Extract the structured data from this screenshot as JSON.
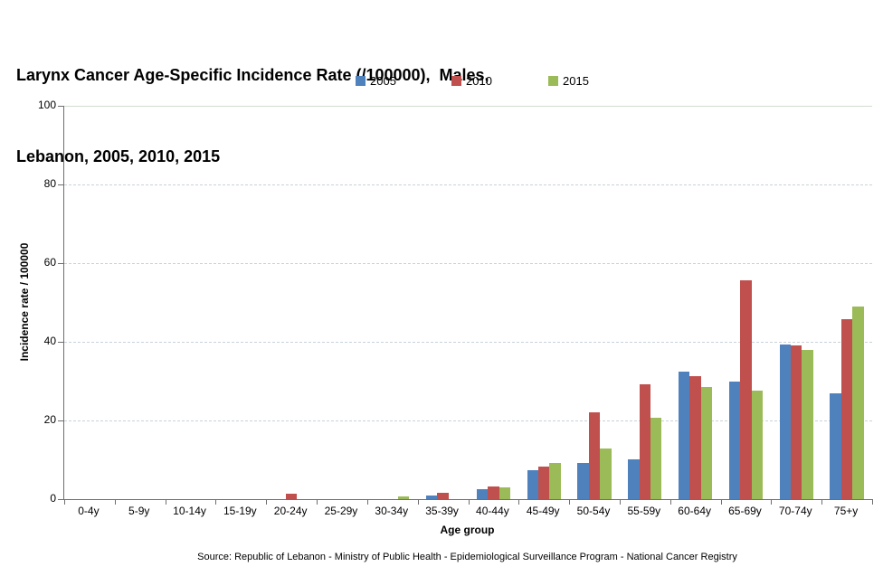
{
  "header": {
    "title_line1": "Larynx Cancer Age-Specific Incidence Rate (/100000),  Males,",
    "title_line2": "Lebanon, 2005, 2010, 2015"
  },
  "source": "Source: Republic of Lebanon - Ministry of Public Health - Epidemiological Surveillance Program - National Cancer Registry",
  "chart_data": {
    "type": "bar",
    "title": "Larynx Cancer Age-Specific Incidence Rate (/100000), Males, Lebanon, 2005, 2010, 2015",
    "categories": [
      "0-4y",
      "5-9y",
      "10-14y",
      "15-19y",
      "20-24y",
      "25-29y",
      "30-34y",
      "35-39y",
      "40-44y",
      "45-49y",
      "50-54y",
      "55-59y",
      "60-64y",
      "65-69y",
      "70-74y",
      "75+y"
    ],
    "series": [
      {
        "name": "2005",
        "color": "#4F81BD",
        "values": [
          0,
          0,
          0,
          0,
          0,
          0,
          0,
          0.9,
          2.6,
          7.4,
          9.2,
          10.1,
          32.5,
          29.8,
          39.3,
          26.9
        ]
      },
      {
        "name": "2010",
        "color": "#C0504D",
        "values": [
          0,
          0,
          0,
          0,
          1.3,
          0,
          0,
          1.7,
          3.2,
          8.2,
          22.0,
          29.3,
          31.2,
          55.6,
          39.1,
          45.7
        ]
      },
      {
        "name": "2015",
        "color": "#9BBB59",
        "values": [
          0,
          0,
          0,
          0,
          0,
          0,
          0.6,
          0,
          3.1,
          9.3,
          12.8,
          20.6,
          28.6,
          27.7,
          38.0,
          48.9
        ]
      }
    ],
    "xlabel": "Age group",
    "ylabel": "Incidence rate / 100000",
    "ylim": [
      0,
      100
    ],
    "yticks": [
      0,
      20,
      40,
      60,
      80,
      100
    ],
    "grid": true,
    "legend_position": "top"
  }
}
